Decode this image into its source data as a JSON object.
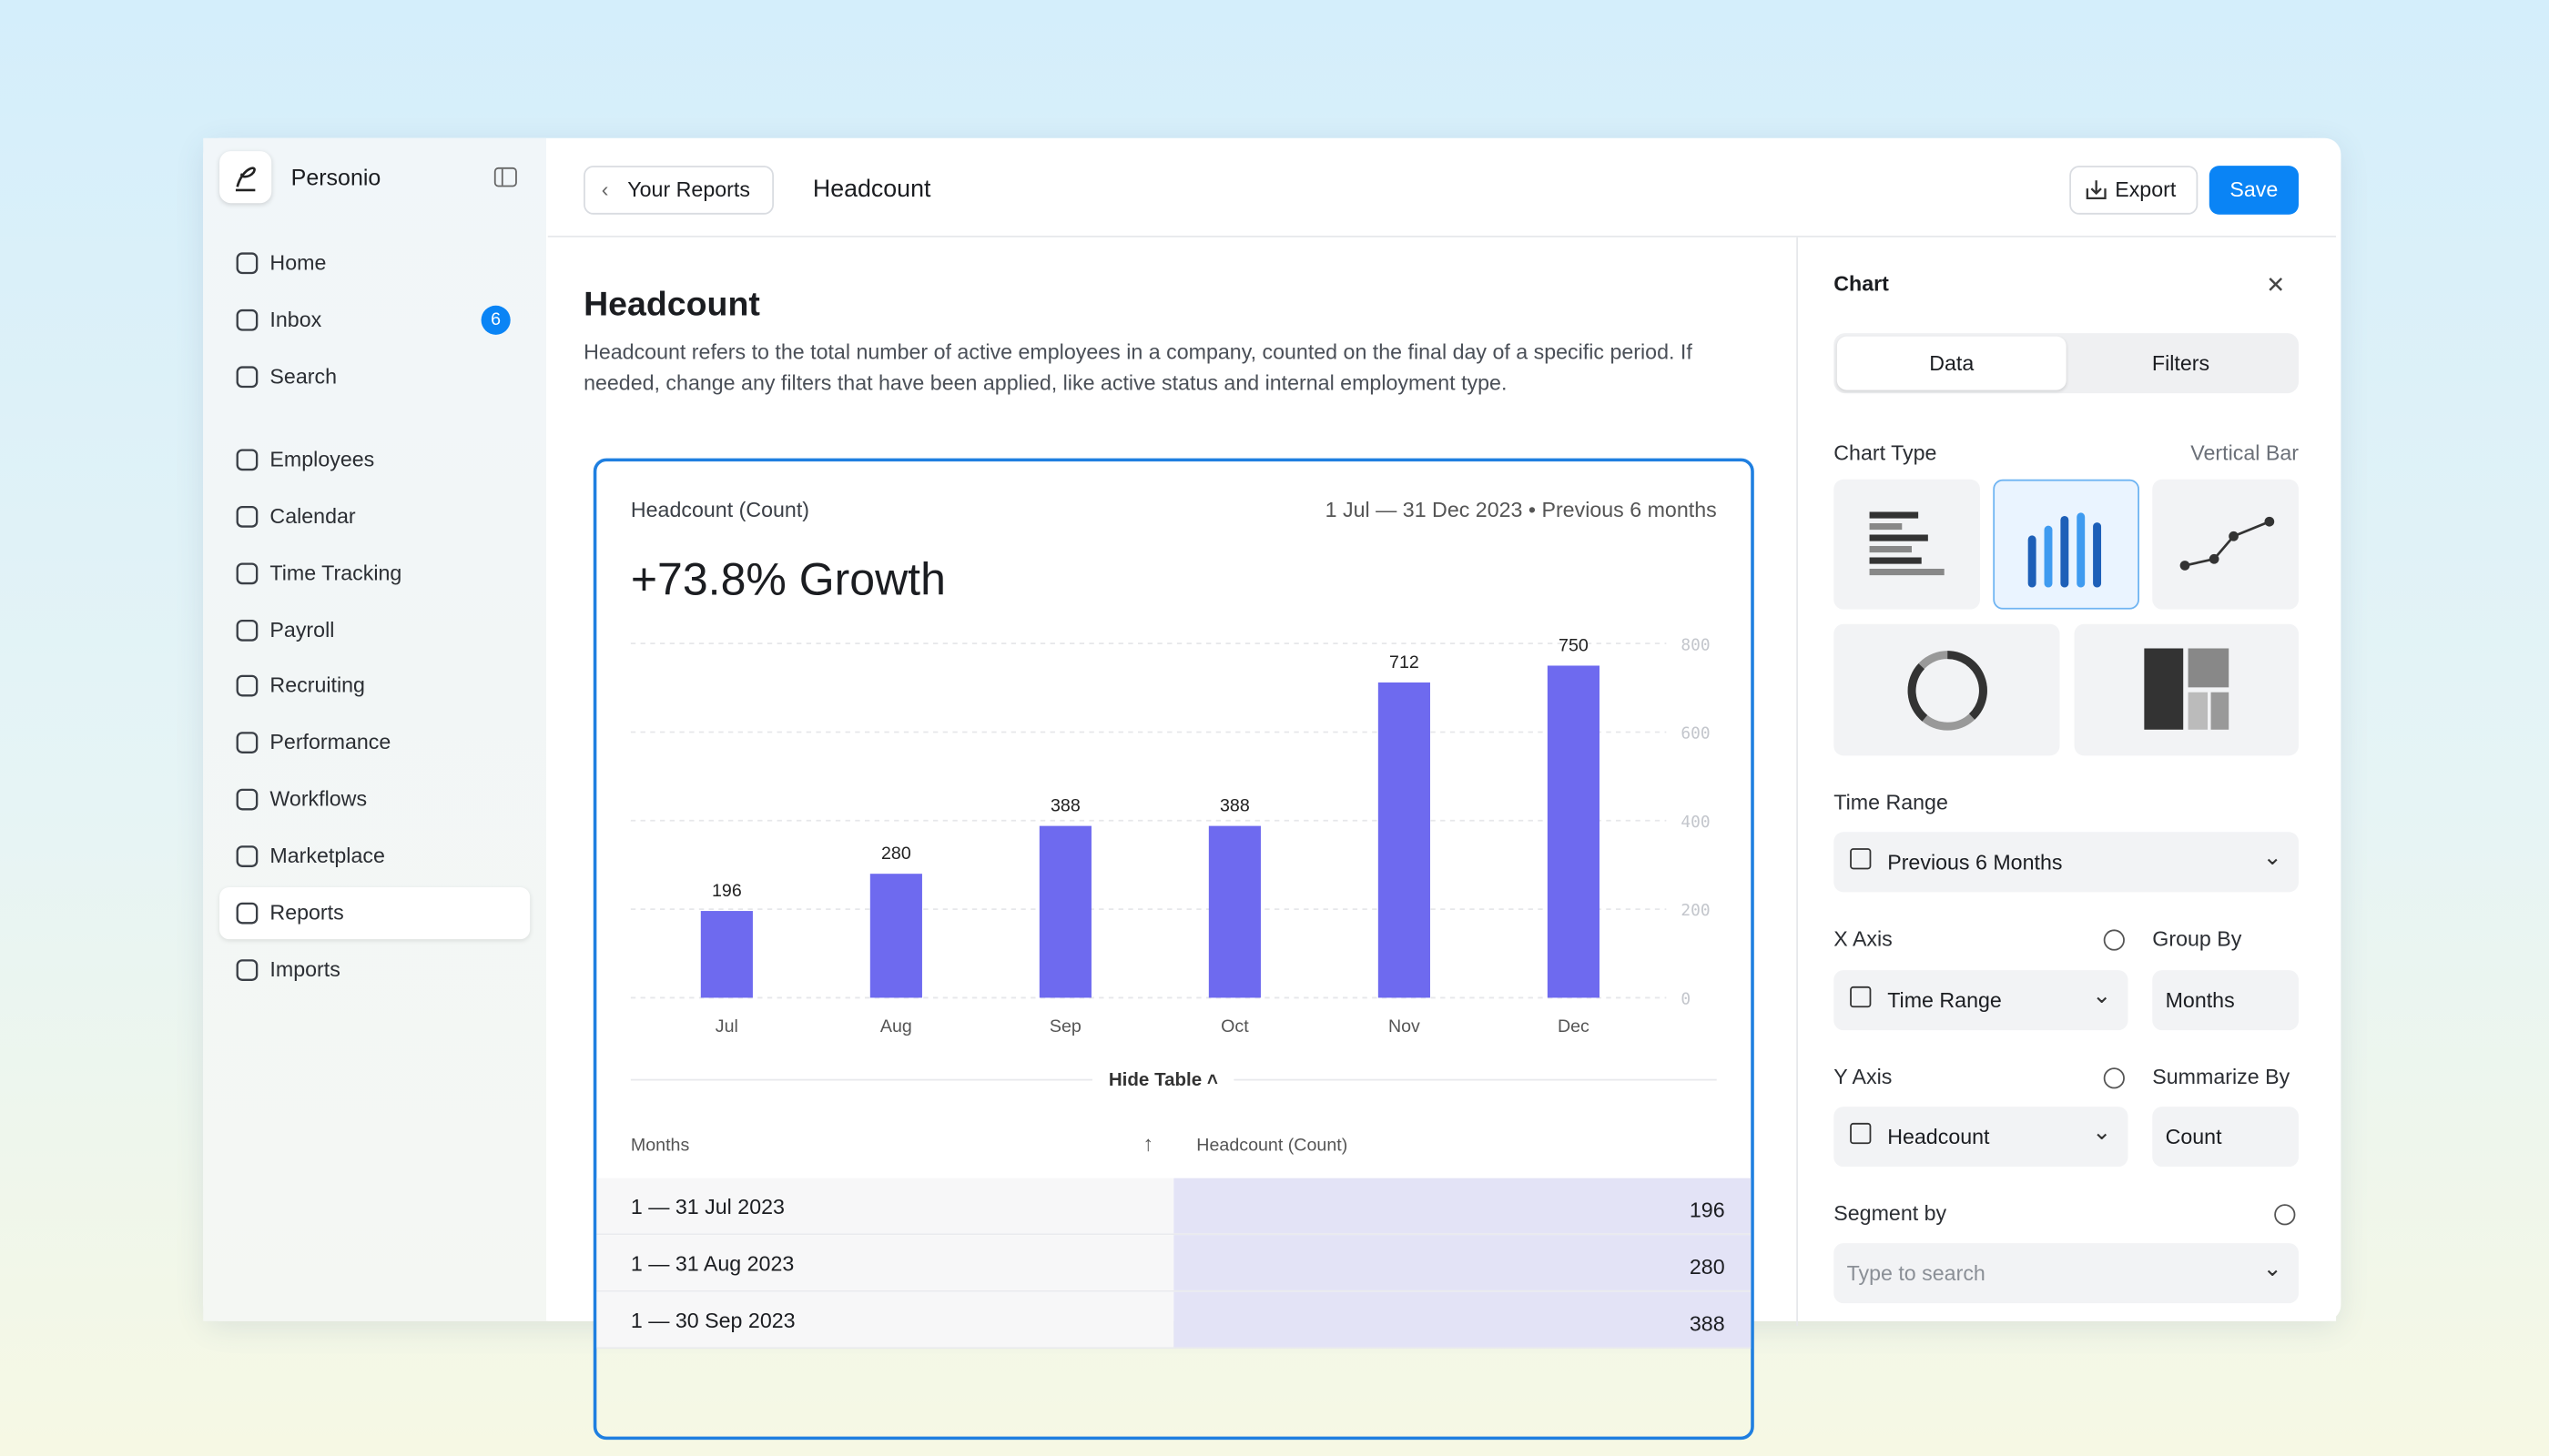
{
  "sidebar": {
    "brand": "Personio",
    "nav": [
      "Home",
      "Inbox",
      "Search",
      "Employees",
      "Calendar",
      "Time Tracking",
      "Payroll",
      "Recruiting",
      "Performance",
      "Workflows",
      "Marketplace",
      "Reports",
      "Imports"
    ],
    "inbox_badge": 6
  },
  "header": {
    "back": "Your Reports",
    "title": "Headcount",
    "export": "Export",
    "save": "Save"
  },
  "report": {
    "title": "Headcount",
    "description": "Headcount refers to the total number of active employees in a company, counted on the final day of a specific period. If needed, change any filters that have been applied, like active status and internal employment type."
  },
  "chart_data": {
    "type": "bar",
    "title": "Headcount (Count)",
    "subtitle": "1 Jul — 31 Dec 2023 • Previous 6 months",
    "headline": "+73.8% Growth",
    "categories": [
      "Jul",
      "Aug",
      "Sep",
      "Oct",
      "Nov",
      "Dec"
    ],
    "values": [
      196,
      280,
      388,
      388,
      712,
      750
    ],
    "color": "#6e6aef",
    "ylim": [
      0,
      800
    ],
    "yticks": [
      0,
      200,
      400,
      600,
      800
    ],
    "grid": true
  },
  "table": {
    "toggle": "Hide Table",
    "headers": [
      "Months",
      "Headcount (Count)"
    ],
    "rows": [
      [
        "1 — 31 Jul 2023",
        196
      ],
      [
        "1 — 31 Aug 2023",
        280
      ],
      [
        "1 — 30 Sep 2023",
        388
      ]
    ]
  },
  "panel": {
    "title": "Chart",
    "tabs": [
      "Data",
      "Filters"
    ],
    "chart_type_label": "Chart Type",
    "chart_type_value": "Vertical Bar",
    "time_range_label": "Time Range",
    "time_range_value": "Previous 6 Months",
    "x_axis_label": "X Axis",
    "x_axis_value": "Time Range",
    "group_by_label": "Group By",
    "group_by_value": "Months",
    "y_axis_label": "Y Axis",
    "y_axis_value": "Headcount",
    "summarize_label": "Summarize By",
    "summarize_value": "Count",
    "segment_label": "Segment by",
    "segment_placeholder": "Type to search"
  }
}
